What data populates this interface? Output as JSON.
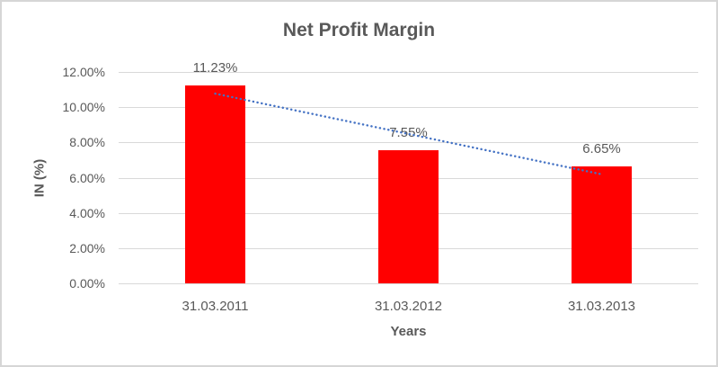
{
  "chart_data": {
    "type": "bar",
    "title": "Net Profit Margin",
    "xlabel": "Years",
    "ylabel": "IN (%)",
    "categories": [
      "31.03.2011",
      "31.03.2012",
      "31.03.2013"
    ],
    "values": [
      11.23,
      7.55,
      6.65
    ],
    "data_labels": [
      "11.23%",
      "7.55%",
      "6.65%"
    ],
    "ylim": [
      0,
      12
    ],
    "ytick_step": 2,
    "ytick_labels": [
      "0.00%",
      "2.00%",
      "4.00%",
      "6.00%",
      "8.00%",
      "10.00%",
      "12.00%"
    ],
    "grid": true,
    "legend": "none",
    "bar_color": "#ff0000",
    "trendline": {
      "style": "dotted",
      "color": "#4472c4",
      "start_pct": 10.77,
      "end_pct": 6.19
    }
  },
  "colors": {
    "text": "#595959",
    "gridline": "#d9d9d9",
    "frame_border": "#d6d6d6",
    "background": "#ffffff"
  }
}
